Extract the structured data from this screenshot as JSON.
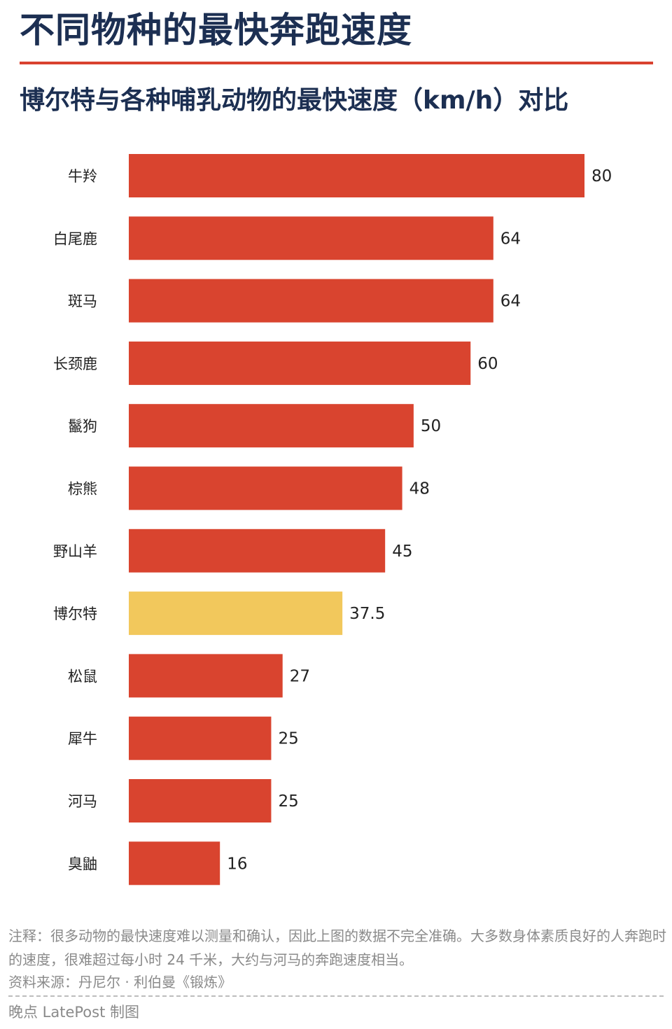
{
  "header": {
    "title": "不同物种的最快奔跑速度",
    "subtitle": "博尔特与各种哺乳动物的最快速度（km/h）对比"
  },
  "chart_data": {
    "type": "bar",
    "orientation": "horizontal",
    "categories": [
      "牛羚",
      "白尾鹿",
      "斑马",
      "长颈鹿",
      "鬣狗",
      "棕熊",
      "野山羊",
      "博尔特",
      "松鼠",
      "犀牛",
      "河马",
      "臭鼬"
    ],
    "values": [
      80,
      64,
      64,
      60,
      50,
      48,
      45,
      37.5,
      27,
      25,
      25,
      16
    ],
    "value_labels": [
      "80",
      "64",
      "64",
      "60",
      "50",
      "48",
      "45",
      "37.5",
      "27",
      "25",
      "25",
      "16"
    ],
    "highlight_index": 7,
    "xlim": [
      0,
      80
    ],
    "grid": false,
    "legend": "none",
    "colors": {
      "bar": "#d9442f",
      "highlight": "#f2c85c"
    }
  },
  "footer": {
    "note": "注释：很多动物的最快速度难以测量和确认，因此上图的数据不完全准确。大多数身体素质良好的人奔跑时的速度，很难超过每小时 24 千米，大约与河马的奔跑速度相当。",
    "source": "资料来源：丹尼尔 · 利伯曼《锻炼》",
    "credit": "晚点 LatePost 制图"
  }
}
